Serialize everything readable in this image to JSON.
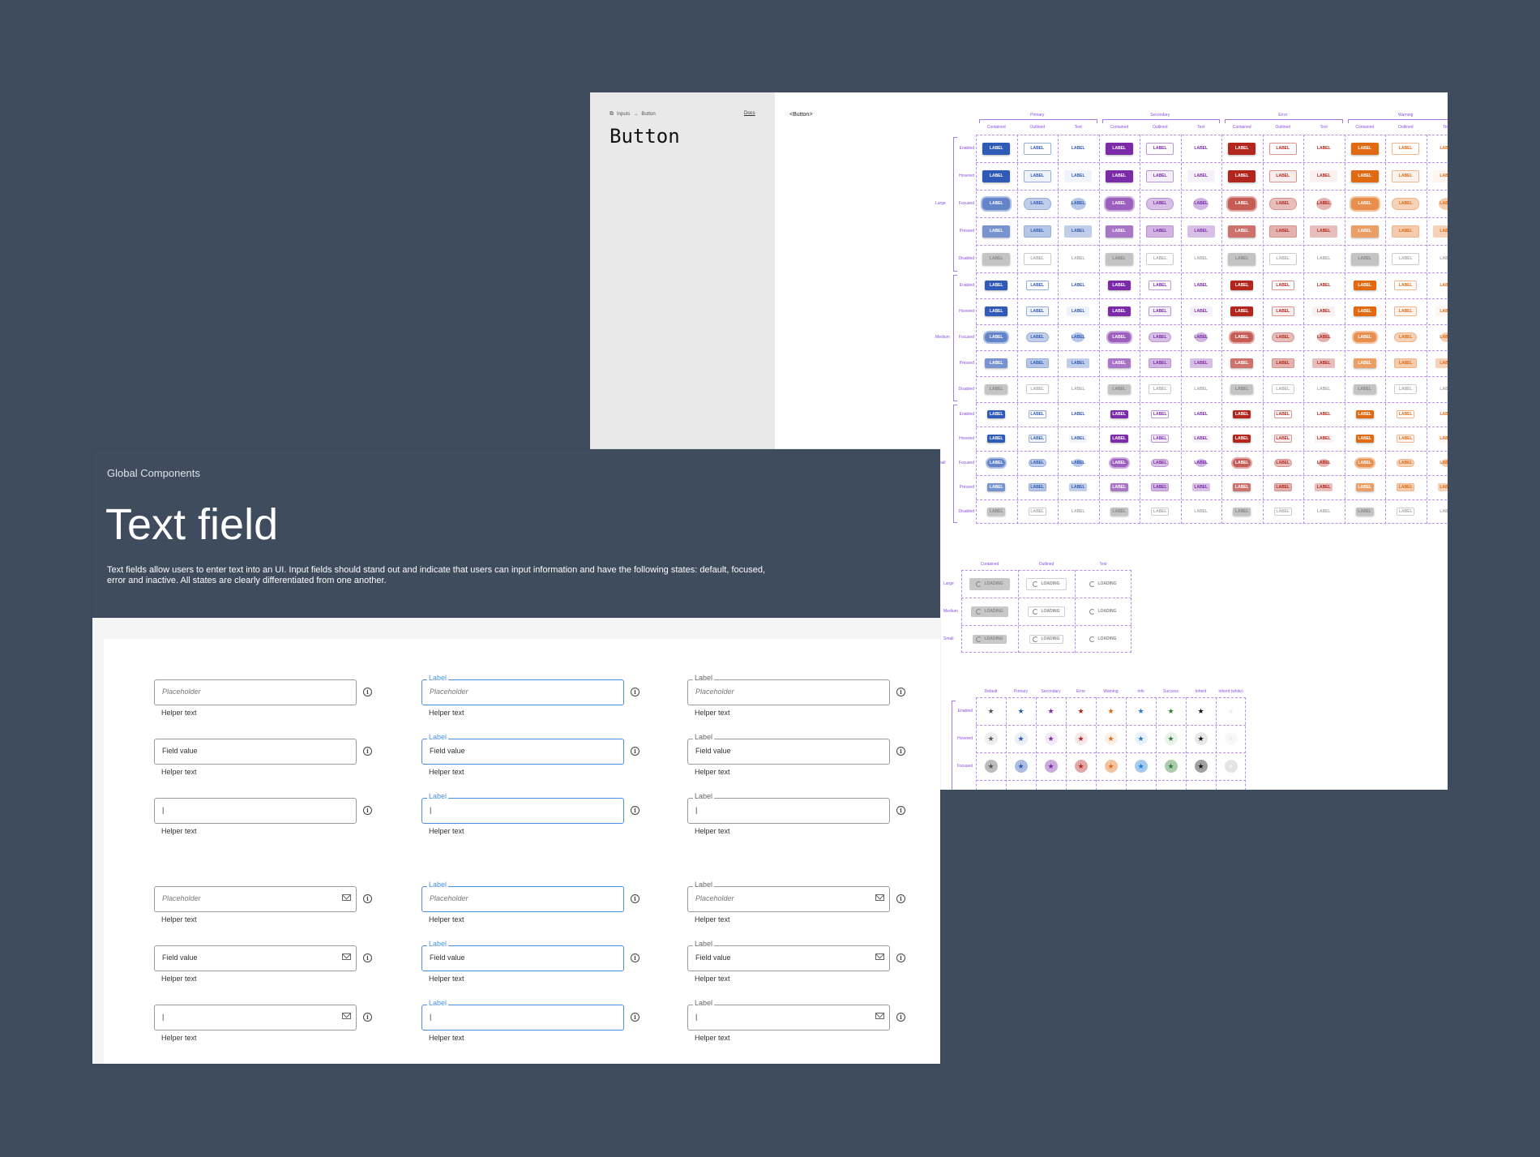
{
  "button_page": {
    "breadcrumb": [
      "Inputs",
      "Button"
    ],
    "docs_link": "Docs",
    "title": "Button",
    "component_tag": "<Button>",
    "groups": [
      "Primary",
      "Secondary",
      "Error",
      "Warning"
    ],
    "variants": [
      "Contained",
      "Outlined",
      "Text"
    ],
    "sizes": [
      "Large",
      "Medium",
      "Small"
    ],
    "states": [
      "Enabled",
      "Hovered",
      "Focused",
      "Pressed",
      "Disabled"
    ],
    "button_label": "LABEL",
    "colors": {
      "Primary": "#2f5bb7",
      "Secondary": "#7b2aa8",
      "Error": "#b3261e",
      "Warning": "#e06a12",
      "Disabled": "#c4c4c4"
    },
    "loading": {
      "variants": [
        "Contained",
        "Outlined",
        "Text"
      ],
      "sizes": [
        "Large",
        "Medium",
        "Small"
      ],
      "label": "LOADING"
    },
    "icon_buttons": {
      "colors": [
        "Default",
        "Primary",
        "Secondary",
        "Error",
        "Warning",
        "Info",
        "Success",
        "Inherit",
        "Inherit (white)"
      ],
      "states": [
        "Enabled",
        "Hovered",
        "Focused"
      ],
      "icon": "star-icon",
      "color_values": [
        "#555555",
        "#2f5bb7",
        "#7b2aa8",
        "#b3261e",
        "#e06a12",
        "#1e7bd6",
        "#2e7d32",
        "#111111",
        "#eeeeee"
      ]
    }
  },
  "textfield_page": {
    "kicker": "Global Components",
    "title": "Text field",
    "description": "Text fields allow users to enter text into an UI. Input fields should stand out and indicate that users can input information and have the following states: default, focused, error and inactive. All states are clearly differentiated from one another.",
    "label": "Label",
    "helper": "Helper text",
    "placeholder": "Placeholder",
    "field_value": "Field value",
    "cursor": "|"
  }
}
